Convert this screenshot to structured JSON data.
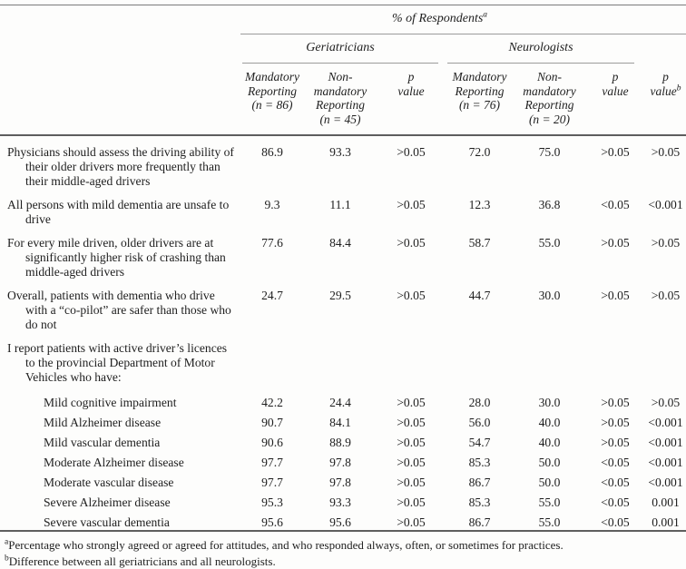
{
  "table": {
    "spanner": "% of Respondents",
    "spanner_sup": "a",
    "groups": [
      {
        "label": "Geriatricians"
      },
      {
        "label": "Neurologists"
      }
    ],
    "columns": [
      {
        "lines": [
          "Mandatory",
          "Reporting",
          "(n = 86)"
        ]
      },
      {
        "lines": [
          "Non-mandatory",
          "Reporting",
          "(n = 45)"
        ]
      },
      {
        "lines": [
          "p",
          "value"
        ]
      },
      {
        "lines": [
          "Mandatory",
          "Reporting",
          "(n = 76)"
        ]
      },
      {
        "lines": [
          "Non-mandatory",
          "Reporting",
          "(n = 20)"
        ]
      },
      {
        "lines": [
          "p",
          "value"
        ]
      },
      {
        "lines": [
          "p",
          "value"
        ],
        "sup": "b"
      }
    ],
    "rows": [
      {
        "type": "main",
        "label": "Physicians should assess the driving ability of their older drivers more frequently than their middle-aged drivers",
        "values": [
          "86.9",
          "93.3",
          ">0.05",
          "72.0",
          "75.0",
          ">0.05",
          ">0.05"
        ]
      },
      {
        "type": "main",
        "label": "All persons with mild dementia are unsafe to drive",
        "values": [
          "9.3",
          "11.1",
          ">0.05",
          "12.3",
          "36.8",
          "<0.05",
          "<0.001"
        ]
      },
      {
        "type": "main",
        "label": "For every mile driven, older drivers are at significantly higher risk of crashing than middle-aged drivers",
        "values": [
          "77.6",
          "84.4",
          ">0.05",
          "58.7",
          "55.0",
          ">0.05",
          ">0.05"
        ]
      },
      {
        "type": "main",
        "label": "Overall, patients with dementia who drive with a “co-pilot” are safer than those who do not",
        "values": [
          "24.7",
          "29.5",
          ">0.05",
          "44.7",
          "30.0",
          ">0.05",
          ">0.05"
        ]
      },
      {
        "type": "statement",
        "label": "I report patients with active driver’s licences to the provincial Department of Motor Vehicles who have:",
        "values": []
      },
      {
        "type": "sub",
        "label": "Mild cognitive impairment",
        "values": [
          "42.2",
          "24.4",
          ">0.05",
          "28.0",
          "30.0",
          ">0.05",
          ">0.05"
        ]
      },
      {
        "type": "sub",
        "label": "Mild Alzheimer disease",
        "values": [
          "90.7",
          "84.1",
          ">0.05",
          "56.0",
          "40.0",
          ">0.05",
          "<0.001"
        ]
      },
      {
        "type": "sub",
        "label": "Mild vascular dementia",
        "values": [
          "90.6",
          "88.9",
          ">0.05",
          "54.7",
          "40.0",
          ">0.05",
          "<0.001"
        ]
      },
      {
        "type": "sub",
        "label": "Moderate Alzheimer disease",
        "values": [
          "97.7",
          "97.8",
          ">0.05",
          "85.3",
          "50.0",
          "<0.05",
          "<0.001"
        ]
      },
      {
        "type": "sub",
        "label": "Moderate vascular disease",
        "values": [
          "97.7",
          "97.8",
          ">0.05",
          "86.7",
          "50.0",
          "<0.05",
          "<0.001"
        ]
      },
      {
        "type": "sub",
        "label": "Severe Alzheimer disease",
        "values": [
          "95.3",
          "93.3",
          ">0.05",
          "85.3",
          "55.0",
          "<0.05",
          "0.001"
        ]
      },
      {
        "type": "sub",
        "label": "Severe vascular dementia",
        "values": [
          "95.6",
          "95.6",
          ">0.05",
          "86.7",
          "55.0",
          "<0.05",
          "0.001"
        ]
      }
    ],
    "footnotes": [
      {
        "sup": "a",
        "text": "Percentage who strongly agreed or agreed for attitudes, and who responded always, often, or sometimes for practices."
      },
      {
        "sup": "b",
        "text": "Difference between all geriatricians and all neurologists."
      }
    ],
    "rule_color": "#5e5e5e",
    "thin_rule_color": "#9b9b9b"
  }
}
